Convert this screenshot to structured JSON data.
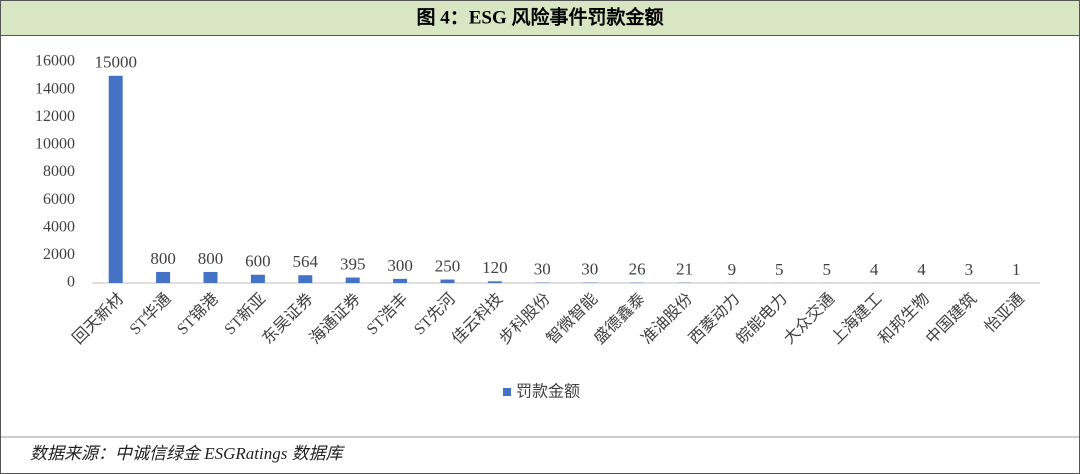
{
  "header": {
    "title": "图 4：ESG 风险事件罚款金额"
  },
  "chart_data": {
    "type": "bar",
    "categories": [
      "回天新材",
      "ST华通",
      "ST锦港",
      "ST新亚",
      "东吴证券",
      "海通证券",
      "ST浩丰",
      "ST先河",
      "佳云科技",
      "步科股份",
      "智微智能",
      "盛德鑫泰",
      "准油股份",
      "西菱动力",
      "皖能电力",
      "大众交通",
      "上海建工",
      "和邦生物",
      "中国建筑",
      "怡亚通"
    ],
    "series": [
      {
        "name": "罚款金额",
        "color": "#4472c4",
        "values": [
          15000,
          800,
          800,
          600,
          564,
          395,
          300,
          250,
          120,
          30,
          30,
          26,
          21,
          9,
          5,
          5,
          4,
          4,
          3,
          1
        ]
      }
    ],
    "ylim": [
      0,
      16000
    ],
    "yticks": [
      0,
      2000,
      4000,
      6000,
      8000,
      10000,
      12000,
      14000,
      16000
    ],
    "grid": false,
    "legend": "bottom",
    "data_labels": true
  },
  "footer": {
    "source": "数据来源：中诚信绿金 ESGRatings 数据库"
  }
}
